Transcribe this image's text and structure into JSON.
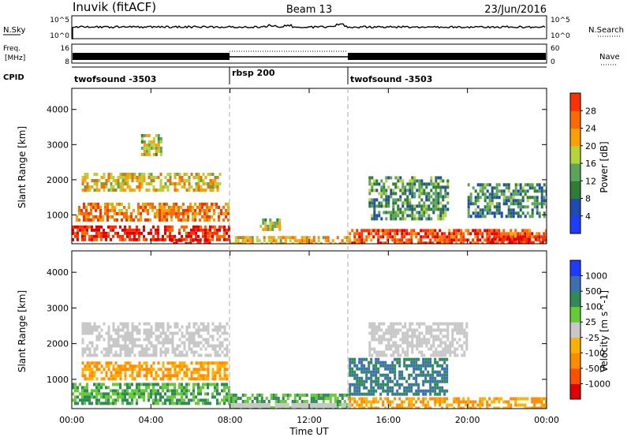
{
  "header": {
    "station": "Inuvik (fitACF)",
    "beam": "Beam 13",
    "date": "23/Jun/2016"
  },
  "nsky_panel": {
    "label": "N.Sky",
    "ytick_top": "10^5",
    "ytick_bottom": "10^0",
    "right_label": "N.Search",
    "right_tick_top": "10^5",
    "right_tick_bottom": "10^0"
  },
  "freq_panel": {
    "label_line1": "Freq.",
    "label_line2": "[MHz]",
    "ytick_top": "16",
    "ytick_bottom": "8",
    "right_label": "Nave",
    "right_tick_top": "60",
    "right_tick_bottom": "0"
  },
  "cpid_panel": {
    "label": "CPID",
    "segments": [
      {
        "name": "twofsound -3503",
        "start_h": 0,
        "end_h": 8
      },
      {
        "name": "rbsp 200",
        "start_h": 8,
        "end_h": 14
      },
      {
        "name": "twofsound -3503",
        "start_h": 14,
        "end_h": 24
      }
    ]
  },
  "x_axis": {
    "label": "Time UT",
    "ticks": [
      "00:00",
      "04:00",
      "08:00",
      "12:00",
      "16:00",
      "20:00",
      "00:00"
    ]
  },
  "colors": {
    "power": [
      "#1e3cff",
      "#1f4bb0",
      "#2e7d32",
      "#5aa55a",
      "#b7d33a",
      "#ff9f00",
      "#ff6a00",
      "#ff3000",
      "#e00000"
    ],
    "velocity": [
      "#e00000",
      "#ff5000",
      "#ff8c00",
      "#ffb000",
      "#c8c8c8",
      "#66cc33",
      "#2e8b57",
      "#3a6fb0",
      "#1e3cff"
    ]
  },
  "chart_data": [
    {
      "type": "heatmap",
      "ylabel": "Slant Range [km]",
      "xlabel": "",
      "xlim": [
        0,
        24
      ],
      "ylim": [
        180,
        4600
      ],
      "yticks": [
        1000,
        2000,
        3000,
        4000
      ],
      "colorbar": {
        "label": "Power [dB]",
        "ticks": [
          "4",
          "8",
          "12",
          "16",
          "20",
          "24",
          "28"
        ],
        "range": [
          0,
          30
        ]
      },
      "regions": [
        {
          "t0": 0.0,
          "t1": 7.9,
          "r0": 300,
          "r1": 700,
          "v": 26
        },
        {
          "t0": 0.2,
          "t1": 7.9,
          "r0": 900,
          "r1": 1350,
          "v": 21
        },
        {
          "t0": 0.5,
          "t1": 7.5,
          "r0": 1700,
          "r1": 2200,
          "v": 17
        },
        {
          "t0": 3.5,
          "t1": 4.5,
          "r0": 2700,
          "r1": 3300,
          "v": 14
        },
        {
          "t0": 5.0,
          "t1": 7.0,
          "r0": 190,
          "r1": 320,
          "v": 29
        },
        {
          "t0": 8.0,
          "t1": 14.0,
          "r0": 190,
          "r1": 400,
          "v": 18
        },
        {
          "t0": 9.5,
          "t1": 10.5,
          "r0": 600,
          "r1": 900,
          "v": 14
        },
        {
          "t0": 14.0,
          "t1": 24.0,
          "r0": 190,
          "r1": 600,
          "v": 24
        },
        {
          "t0": 15.0,
          "t1": 19.0,
          "r0": 900,
          "r1": 2100,
          "v": 10
        },
        {
          "t0": 21.0,
          "t1": 23.8,
          "r0": 190,
          "r1": 350,
          "v": 28
        },
        {
          "t0": 20.0,
          "t1": 24.0,
          "r0": 1000,
          "r1": 1900,
          "v": 9
        }
      ]
    },
    {
      "type": "heatmap",
      "ylabel": "Slant Range [km]",
      "xlabel": "Time UT",
      "xlim": [
        0,
        24
      ],
      "ylim": [
        180,
        4600
      ],
      "yticks": [
        1000,
        2000,
        3000,
        4000
      ],
      "colorbar": {
        "label": "Velocity [m s^-1]",
        "ticks": [
          "-1000",
          "-500",
          "-100",
          "-25",
          "25",
          "100",
          "500",
          "1000"
        ]
      },
      "regions": [
        {
          "t0": 0.0,
          "t1": 7.9,
          "r0": 300,
          "r1": 900,
          "v": 100
        },
        {
          "t0": 0.5,
          "t1": 7.8,
          "r0": 1000,
          "r1": 1500,
          "v": -100
        },
        {
          "t0": 0.5,
          "t1": 7.8,
          "r0": 1700,
          "r1": 2600,
          "v": 0
        },
        {
          "t0": 8.0,
          "t1": 14.0,
          "r0": 190,
          "r1": 600,
          "v": 100
        },
        {
          "t0": 14.0,
          "t1": 19.0,
          "r0": 600,
          "r1": 1600,
          "v": 500
        },
        {
          "t0": 14.0,
          "t1": 24.0,
          "r0": 190,
          "r1": 500,
          "v": -100
        },
        {
          "t0": 15.0,
          "t1": 20.0,
          "r0": 1700,
          "r1": 2600,
          "v": 0
        }
      ]
    }
  ]
}
